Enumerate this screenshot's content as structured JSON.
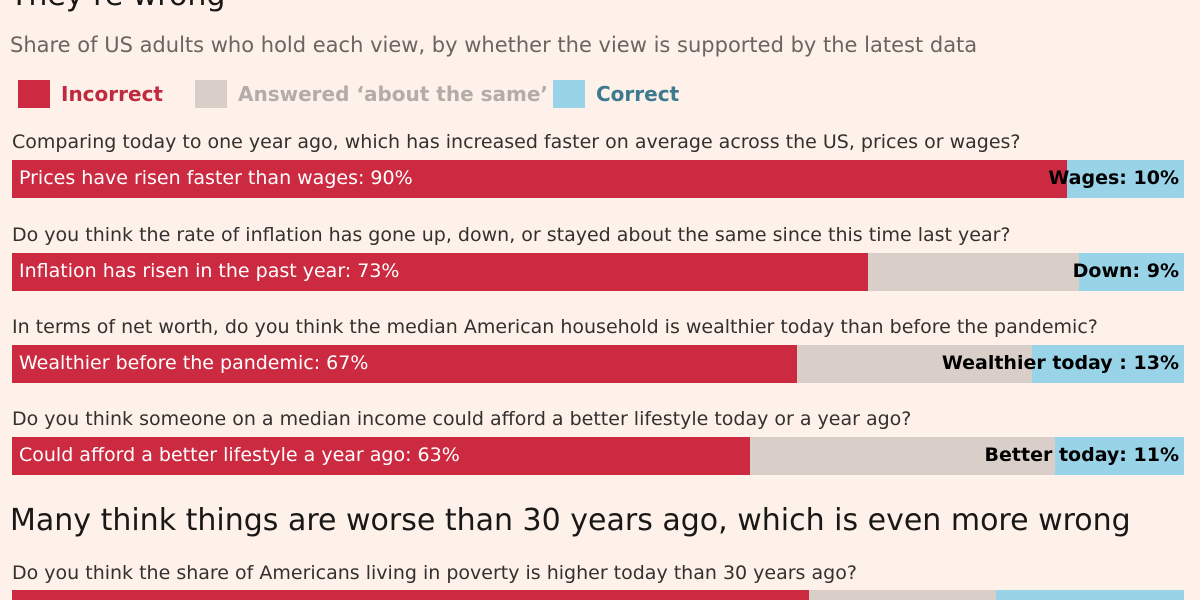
{
  "header": {
    "title": "They’re wrong",
    "subtitle": "Share of US adults who hold each view, by whether the view is supported by the latest data"
  },
  "legend": [
    {
      "label": "Incorrect",
      "color": "#cc2a40",
      "text_color": "#c02a3e"
    },
    {
      "label": "Answered ‘about the same’",
      "color": "#d9cfc8",
      "text_color": "#b3aca8"
    },
    {
      "label": "Correct",
      "color": "#99d3e8",
      "text_color": "#3d7a8f"
    }
  ],
  "colors": {
    "incorrect": "#cc2a40",
    "same": "#d9cfc8",
    "correct": "#99d3e8",
    "background": "#fdf1e9"
  },
  "chart_data": [
    {
      "type": "bar",
      "orientation": "horizontal-stacked",
      "title": "They’re wrong",
      "subtitle": "Share of US adults who hold each view, by whether the view is supported by the latest data",
      "xlim": [
        0,
        100
      ],
      "unit": "%",
      "series_names": [
        "Incorrect",
        "Answered ‘about the same’",
        "Correct"
      ],
      "items": [
        {
          "question": "Comparing today to one year ago, which has increased faster on average across the US, prices or wages?",
          "incorrect": 90,
          "correct": 10,
          "incorrect_label": "Prices have risen faster than wages: 90%",
          "correct_label": "Wages: 10%"
        },
        {
          "question": "Do you think the rate of inflation has gone up, down, or stayed about the same since this time last year?",
          "incorrect": 73,
          "correct": 9,
          "incorrect_label": "Inflation has risen in the past year: 73%",
          "correct_label": "Down: 9%"
        },
        {
          "question": "In terms of net worth, do you think the median American household is wealthier today than before the pandemic?",
          "incorrect": 67,
          "correct": 13,
          "incorrect_label": "Wealthier before the pandemic: 67%",
          "correct_label": "Wealthier today : 13%"
        },
        {
          "question": "Do you think someone on a median income could afford a better lifestyle today or a year ago?",
          "incorrect": 63,
          "correct": 11,
          "incorrect_label": "Could afford a better lifestyle a year ago: 63%",
          "correct_label": "Better today: 11%"
        }
      ]
    },
    {
      "type": "bar",
      "orientation": "horizontal-stacked",
      "title": "Many think things are worse than 30 years ago, which is even more wrong",
      "xlim": [
        0,
        100
      ],
      "unit": "%",
      "series_names": [
        "Incorrect",
        "Answered ‘about the same’",
        "Correct"
      ],
      "items": [
        {
          "question": "Do you think the share of Americans living in poverty is higher today than 30 years ago?",
          "incorrect": 68,
          "correct": 16
        }
      ]
    }
  ]
}
